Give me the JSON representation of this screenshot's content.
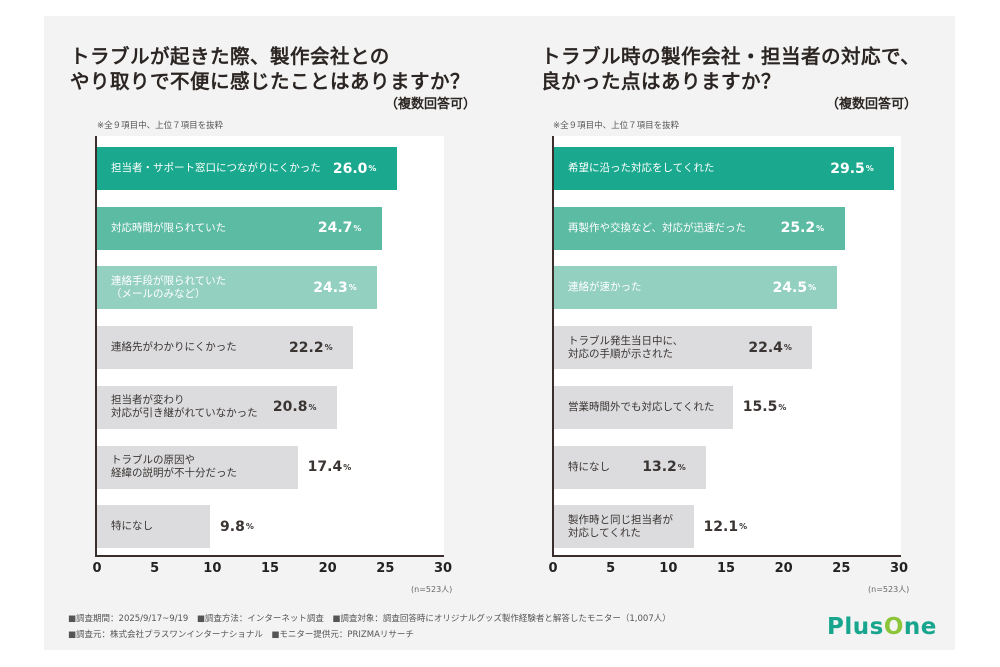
{
  "chart_data": [
    {
      "type": "bar",
      "orientation": "horizontal",
      "title": "トラブルが起きた際、製作会社との\nやり取りで不便に感じたことはありますか？",
      "subtitle": "（複数回答可）",
      "note": "※全９項目中、上位７項目を抜粋",
      "categories": [
        "担当者・サポート窓口につながりにくかった",
        "対応時間が限られていた",
        "連絡手段が限られていた\n（メールのみなど）",
        "連絡先がわかりにくかった",
        "担当者が変わり\n対応が引き継がれていなかった",
        "トラブルの原因や\n経緯の説明が不十分だった",
        "特になし"
      ],
      "values": [
        26.0,
        24.7,
        24.3,
        22.2,
        20.8,
        17.4,
        9.8
      ],
      "value_suffix": "%",
      "xlim": [
        0,
        30
      ],
      "xticks": [
        "0",
        "5",
        "10",
        "15",
        "20",
        "25",
        "30"
      ],
      "sample_note": "(n=523人)",
      "bar_colors": [
        "#1aa98e",
        "#5cbba3",
        "#94d0c0",
        "#dcdcde",
        "#dcdcde",
        "#dcdcde",
        "#dcdcde"
      ],
      "label_colors": [
        "#ffffff",
        "#ffffff",
        "#ffffff",
        "#3a3533",
        "#3a3533",
        "#3a3533",
        "#3a3533"
      ],
      "grid": false
    },
    {
      "type": "bar",
      "orientation": "horizontal",
      "title": "トラブル時の製作会社・担当者の対応で、\n良かった点はありますか？",
      "subtitle": "（複数回答可）",
      "note": "※全９項目中、上位７項目を抜粋",
      "categories": [
        "希望に沿った対応をしてくれた",
        "再製作や交換など、対応が迅速だった",
        "連絡が速かった",
        "トラブル発生当日中に、\n対応の手順が示された",
        "営業時間外でも対応してくれた",
        "特になし",
        "製作時と同じ担当者が\n対応してくれた"
      ],
      "values": [
        29.5,
        25.2,
        24.5,
        22.4,
        15.5,
        13.2,
        12.1
      ],
      "value_suffix": "%",
      "xlim": [
        0,
        30
      ],
      "xticks": [
        "0",
        "5",
        "10",
        "15",
        "20",
        "25",
        "30"
      ],
      "sample_note": "(n=523人)",
      "bar_colors": [
        "#1aa98e",
        "#5cbba3",
        "#94d0c0",
        "#dcdcde",
        "#dcdcde",
        "#dcdcde",
        "#dcdcde"
      ],
      "label_colors": [
        "#ffffff",
        "#ffffff",
        "#ffffff",
        "#3a3533",
        "#3a3533",
        "#3a3533",
        "#3a3533"
      ],
      "grid": false
    }
  ],
  "footer": {
    "line1": "■調査期間：2025/9/17~9/19　■調査方法：インターネット調査　■調査対象：調査回答時にオリジナルグッズ製作経験者と解答したモニター（1,007人）",
    "line2": "■調査元：株式会社プラスワンインターナショナル　■モニター提供元：PRIZMAリサーチ"
  },
  "logo": {
    "part1": "Plus",
    "part2": "O",
    "part3": "ne"
  }
}
